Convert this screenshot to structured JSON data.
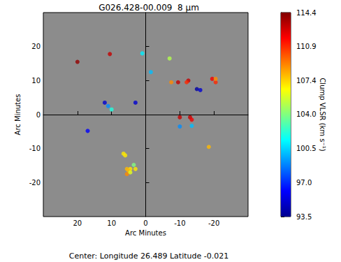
{
  "chart_data": {
    "type": "scatter",
    "title": "G026.428-00.009  8 μm",
    "subtitle": "Center: Longitude 26.489 Latitude -0.021",
    "x_label": "Arc Minutes",
    "y_label": "Arc Minutes",
    "xlim": [
      30,
      -30
    ],
    "ylim": [
      -30,
      30
    ],
    "xticks": [
      20,
      10,
      0,
      -10,
      -20
    ],
    "yticks": [
      -20,
      -10,
      0,
      10,
      20
    ],
    "grid": false,
    "marker": "circle",
    "x": [
      20,
      10.5,
      1,
      -7,
      -1.5,
      -7.5,
      -9.5,
      -12.5,
      -12,
      -15,
      -16,
      -19.5,
      -20.5,
      -20.5,
      12,
      11,
      10,
      3,
      17,
      -10,
      -10,
      -13,
      -13.5,
      -13.5,
      -18.5,
      6.5,
      6,
      3.5,
      4.5,
      5,
      5.5,
      3,
      4.5,
      5.5
    ],
    "y": [
      15.5,
      17.8,
      18,
      16.5,
      12.5,
      9.5,
      9.5,
      10,
      9.5,
      7.5,
      7.2,
      10.5,
      9.5,
      10.5,
      3.5,
      2.5,
      1.5,
      3.5,
      -4.8,
      -0.8,
      -3.5,
      -0.8,
      -1.5,
      -3.3,
      -9.5,
      -11.5,
      -12,
      -14.8,
      -16,
      -16.5,
      -17.5,
      -16,
      -17,
      -16
    ],
    "vlsr": [
      114,
      113,
      101,
      105,
      100,
      109,
      113,
      113,
      111,
      94,
      95,
      112,
      111,
      109,
      95,
      99,
      102,
      95,
      96,
      113,
      99,
      113,
      112,
      100,
      108,
      107,
      107,
      104,
      107,
      108,
      109,
      107,
      106,
      108
    ],
    "colorbar": {
      "label": "Clump VLSR (km s⁻¹)",
      "range": [
        93.5,
        114.4
      ],
      "ticks": [
        93.5,
        {
          "value": 97,
          "label": "97.0"
        },
        100.5,
        {
          "value": 104,
          "label": "104.0"
        },
        107.4,
        110.9,
        114.4
      ]
    }
  }
}
